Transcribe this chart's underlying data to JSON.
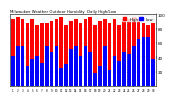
{
  "title": "Milwaukee Weather Outdoor Humidity",
  "subtitle": "Daily High/Low",
  "high_values": [
    93,
    96,
    93,
    88,
    93,
    85,
    88,
    88,
    90,
    93,
    96,
    85,
    90,
    93,
    88,
    93,
    96,
    85,
    90,
    93,
    88,
    93,
    85,
    93,
    93,
    96,
    93,
    88,
    85,
    88
  ],
  "low_values": [
    42,
    55,
    55,
    28,
    38,
    42,
    32,
    55,
    48,
    55,
    25,
    30,
    52,
    55,
    42,
    55,
    48,
    18,
    28,
    55,
    22,
    42,
    35,
    48,
    45,
    55,
    65,
    68,
    68,
    38
  ],
  "high_color": "#ff0000",
  "low_color": "#0000ff",
  "bg_color": "#ffffff",
  "plot_bg": "#ffffff",
  "grid_color": "#cccccc",
  "ylim": [
    0,
    100
  ],
  "yticks": [
    20,
    40,
    60,
    80,
    100
  ],
  "vline_pos": 23.5,
  "legend_high": "High",
  "legend_low": "Low",
  "n_bars": 30
}
